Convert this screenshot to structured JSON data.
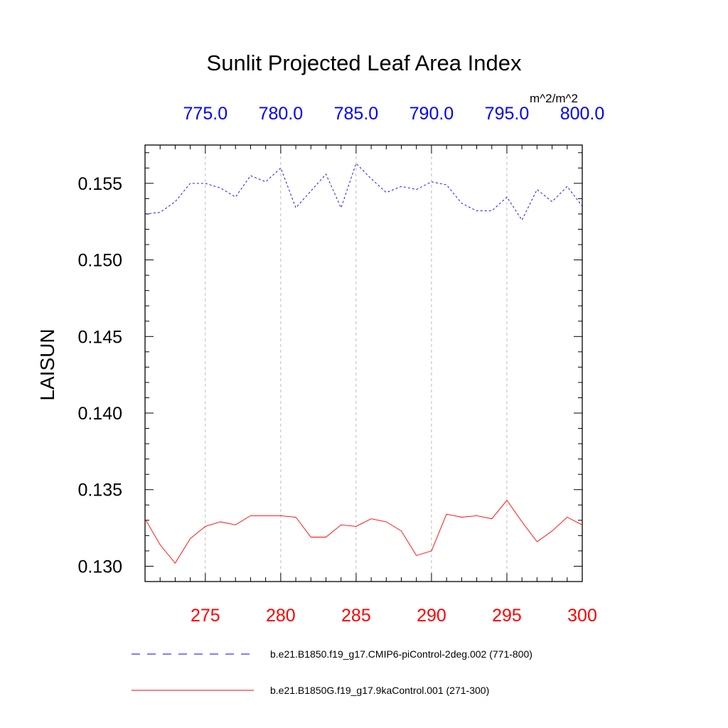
{
  "chart_data": {
    "type": "line",
    "title": "Sunlit Projected Leaf Area Index",
    "units": "m^2/m^2",
    "ylabel": "LAISUN",
    "ylim": [
      0.129,
      0.1575
    ],
    "yticks": [
      {
        "value": 0.13,
        "label": "0.130"
      },
      {
        "value": 0.135,
        "label": "0.135"
      },
      {
        "value": 0.14,
        "label": "0.140"
      },
      {
        "value": 0.145,
        "label": "0.145"
      },
      {
        "value": 0.15,
        "label": "0.150"
      },
      {
        "value": 0.155,
        "label": "0.155"
      }
    ],
    "bottom_axis": {
      "range": [
        271,
        300
      ],
      "ticks": [
        {
          "value": 275,
          "label": "275"
        },
        {
          "value": 280,
          "label": "280"
        },
        {
          "value": 285,
          "label": "285"
        },
        {
          "value": 290,
          "label": "290"
        },
        {
          "value": 295,
          "label": "295"
        },
        {
          "value": 300,
          "label": "300"
        }
      ],
      "color": "#ff0000"
    },
    "top_axis": {
      "range": [
        771,
        800
      ],
      "ticks": [
        {
          "value": 775,
          "label": "775.0"
        },
        {
          "value": 780,
          "label": "780.0"
        },
        {
          "value": 785,
          "label": "785.0"
        },
        {
          "value": 790,
          "label": "790.0"
        },
        {
          "value": 795,
          "label": "795.0"
        },
        {
          "value": 800,
          "label": "800.0"
        }
      ],
      "color": "#0000ff"
    },
    "series": [
      {
        "name": "b.e21.B1850.f19_g17.CMIP6-piControl-2deg.002 (771-800)",
        "axis": "top",
        "color": "#0000ff",
        "dash": "dashed",
        "x": [
          771,
          772,
          773,
          774,
          775,
          776,
          777,
          778,
          779,
          780,
          781,
          782,
          783,
          784,
          785,
          786,
          787,
          788,
          789,
          790,
          791,
          792,
          793,
          794,
          795,
          796,
          797,
          798,
          799,
          800
        ],
        "values": [
          0.153,
          0.1531,
          0.1538,
          0.155,
          0.155,
          0.1547,
          0.1541,
          0.1555,
          0.1551,
          0.156,
          0.1534,
          0.1545,
          0.1556,
          0.1534,
          0.1563,
          0.1553,
          0.1544,
          0.1548,
          0.1546,
          0.1551,
          0.1549,
          0.1537,
          0.1532,
          0.1532,
          0.1541,
          0.1526,
          0.1546,
          0.1538,
          0.1548,
          0.1535
        ]
      },
      {
        "name": "b.e21.B1850G.f19_g17.9kaControl.001 (271-300)",
        "axis": "bottom",
        "color": "#ff0000",
        "dash": "solid",
        "x": [
          271,
          272,
          273,
          274,
          275,
          276,
          277,
          278,
          279,
          280,
          281,
          282,
          283,
          284,
          285,
          286,
          287,
          288,
          289,
          290,
          291,
          292,
          293,
          294,
          295,
          296,
          297,
          298,
          299,
          300
        ],
        "values": [
          0.1331,
          0.1314,
          0.1302,
          0.1318,
          0.1326,
          0.1329,
          0.1327,
          0.1333,
          0.1333,
          0.1333,
          0.1332,
          0.1319,
          0.1319,
          0.1327,
          0.1326,
          0.1331,
          0.1329,
          0.1323,
          0.1307,
          0.131,
          0.1334,
          0.1332,
          0.1333,
          0.1331,
          0.1343,
          0.1329,
          0.1316,
          0.1323,
          0.1332,
          0.1327
        ]
      }
    ],
    "grid": "vertical dashed at major ticks",
    "legend_position": "bottom"
  }
}
